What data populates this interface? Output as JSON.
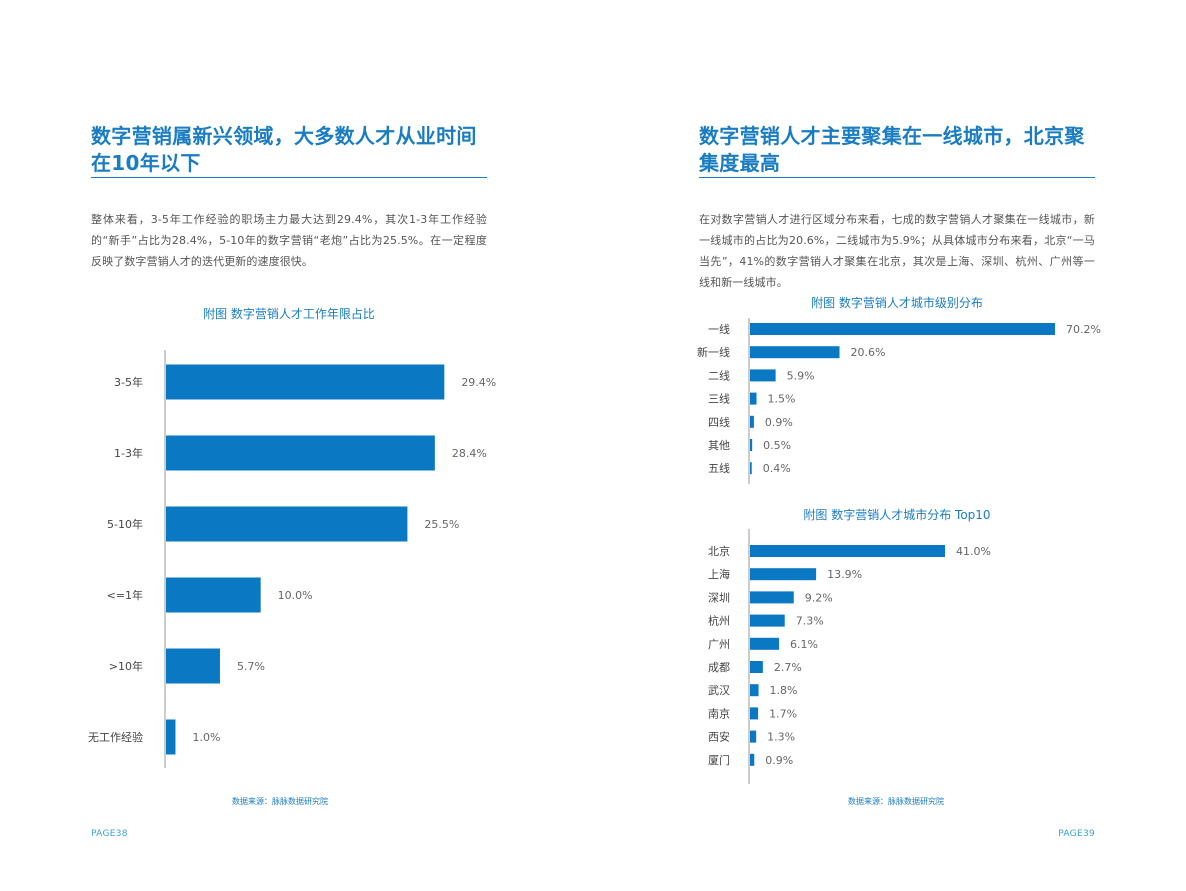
{
  "left_page": {
    "title_line1": "数字营销属新兴领域，大多数人才从业时间",
    "title_line2": "在10年以下",
    "paragraph": "整体来看，3-5年工作经验的职场主力最大达到29.4%，其次1-3年工作经验的“新手”占比为28.4%，5-10年的数字营销“老炮”占比为25.5%。在一定程度反映了数字营销人才的迭代更新的速度很快。",
    "chart_title": "附图  数字营销人才工作年限占比",
    "source": "数据来源：脉脉数据研究院",
    "page_number": "PAGE38"
  },
  "right_page": {
    "title_line1": "数字营销人才主要聚集在一线城市，北京聚",
    "title_line2": "集度最高",
    "paragraph": "在对数字营销人才进行区域分布来看，七成的数字营销人才聚集在一线城市，新一线城市的占比为20.6%，二线城市为5.9%；从具体城市分布来看，北京“一马当先”，41%的数字营销人才聚集在北京，其次是上海、深圳、杭州、广州等一线和新一线城市。",
    "chart1_title": "附图  数字营销人才城市级别分布",
    "chart2_title": "附图  数字营销人才城市分布 Top10",
    "source": "数据来源：脉脉数据研究院",
    "page_number": "PAGE39"
  },
  "colors": {
    "accent": "#1a7cc1",
    "bar": "#0a78c2",
    "axis": "#999999"
  },
  "chart_data": [
    {
      "type": "bar",
      "orientation": "horizontal",
      "title": "附图  数字营销人才工作年限占比",
      "categories": [
        "3-5年",
        "1-3年",
        "5-10年",
        "<=1年",
        ">10年",
        "无工作经验"
      ],
      "values": [
        29.4,
        28.4,
        25.5,
        10.0,
        5.7,
        1.0
      ],
      "labels": [
        "29.4%",
        "28.4%",
        "25.5%",
        "10.0%",
        "5.7%",
        "1.0%"
      ],
      "unit": "%",
      "xlim": [
        0,
        30
      ],
      "grid": false,
      "legend": "none"
    },
    {
      "type": "bar",
      "orientation": "horizontal",
      "title": "附图  数字营销人才城市级别分布",
      "categories": [
        "一线",
        "新一线",
        "二线",
        "三线",
        "四线",
        "其他",
        "五线"
      ],
      "values": [
        70.2,
        20.6,
        5.9,
        1.5,
        0.9,
        0.5,
        0.4
      ],
      "labels": [
        "70.2%",
        "20.6%",
        "5.9%",
        "1.5%",
        "0.9%",
        "0.5%",
        "0.4%"
      ],
      "unit": "%",
      "xlim": [
        0,
        70.2
      ],
      "grid": false,
      "legend": "none"
    },
    {
      "type": "bar",
      "orientation": "horizontal",
      "title": "附图  数字营销人才城市分布 Top10",
      "categories": [
        "北京",
        "上海",
        "深圳",
        "杭州",
        "广州",
        "成都",
        "武汉",
        "南京",
        "西安",
        "厦门"
      ],
      "values": [
        41.0,
        13.9,
        9.2,
        7.3,
        6.1,
        2.7,
        1.8,
        1.7,
        1.3,
        0.9
      ],
      "labels": [
        "41.0%",
        "13.9%",
        "9.2%",
        "7.3%",
        "6.1%",
        "2.7%",
        "1.8%",
        "1.7%",
        "1.3%",
        "0.9%"
      ],
      "unit": "%",
      "xlim": [
        0,
        41
      ],
      "grid": false,
      "legend": "none"
    }
  ]
}
